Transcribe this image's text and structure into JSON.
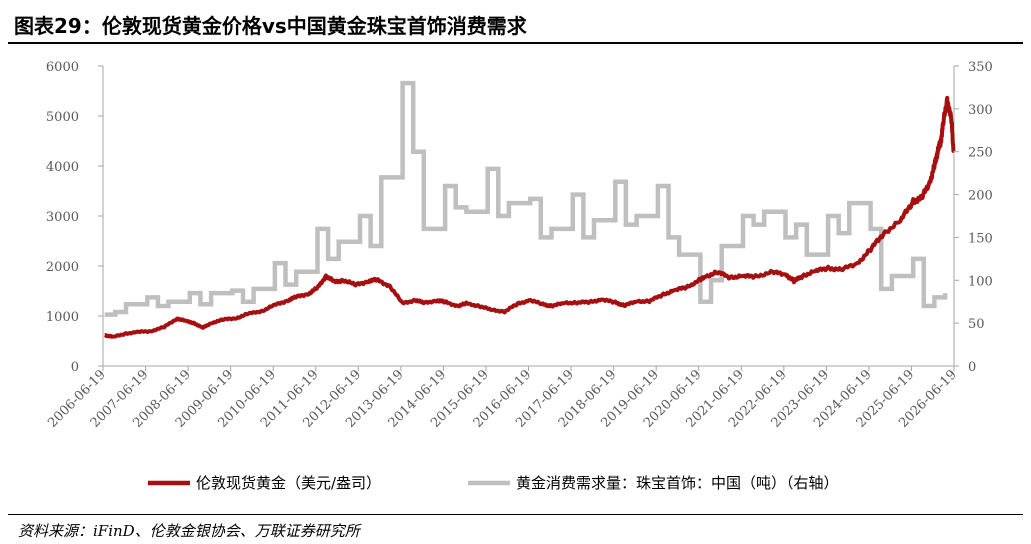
{
  "header": {
    "title": "图表29：伦敦现货黄金价格vs中国黄金珠宝首饰消费需求"
  },
  "footer": {
    "source": "资料来源：iFinD、伦敦金银协会、万联证券研究所"
  },
  "colors": {
    "gold_series": "#A50F0F",
    "demand_series": "#BFBFBF",
    "axis": "#A6A6A6",
    "tick_text": "#595959"
  },
  "chart_data": {
    "type": "line",
    "title": "",
    "xlabel": "",
    "ylabel": "",
    "x_ticks": [
      "2006-06-19",
      "2007-06-19",
      "2008-06-19",
      "2009-06-19",
      "2010-06-19",
      "2011-06-19",
      "2012-06-19",
      "2013-06-19",
      "2014-06-19",
      "2015-06-19",
      "2016-06-19",
      "2017-06-19",
      "2018-06-19",
      "2019-06-19",
      "2020-06-19",
      "2021-06-19",
      "2022-06-19",
      "2023-06-19",
      "2024-06-19",
      "2025-06-19",
      "2026-06-19"
    ],
    "x_range": [
      2006.46,
      2026.46
    ],
    "y_left": {
      "min": 0,
      "max": 6000,
      "ticks": [
        0,
        1000,
        2000,
        3000,
        4000,
        5000,
        6000
      ]
    },
    "y_right": {
      "min": 0,
      "max": 350,
      "ticks": [
        0,
        50,
        100,
        150,
        200,
        250,
        300,
        350
      ]
    },
    "series": [
      {
        "name": "伦敦现货黄金（美元/盎司）",
        "axis": "left",
        "style": "line",
        "x": [
          2006.5,
          2006.7,
          2007.0,
          2007.3,
          2007.6,
          2007.9,
          2008.2,
          2008.4,
          2008.6,
          2008.8,
          2009.0,
          2009.3,
          2009.6,
          2009.9,
          2010.2,
          2010.5,
          2010.8,
          2011.0,
          2011.3,
          2011.5,
          2011.7,
          2011.9,
          2012.1,
          2012.4,
          2012.7,
          2012.9,
          2013.2,
          2013.5,
          2013.8,
          2014.0,
          2014.3,
          2014.5,
          2014.8,
          2015.0,
          2015.3,
          2015.6,
          2015.9,
          2016.2,
          2016.5,
          2016.8,
          2017.0,
          2017.3,
          2017.6,
          2017.9,
          2018.2,
          2018.5,
          2018.7,
          2019.0,
          2019.3,
          2019.6,
          2019.9,
          2020.2,
          2020.5,
          2020.6,
          2020.9,
          2021.2,
          2021.5,
          2021.8,
          2022.2,
          2022.5,
          2022.7,
          2022.9,
          2023.2,
          2023.5,
          2023.8,
          2024.2,
          2024.5,
          2024.8,
          2025.2,
          2025.5,
          2025.7,
          2025.9,
          2026.0,
          2026.05,
          2026.1,
          2026.15,
          2026.2,
          2026.3,
          2026.4,
          2026.45
        ],
        "values": [
          620,
          580,
          650,
          680,
          700,
          780,
          950,
          900,
          860,
          760,
          860,
          930,
          960,
          1050,
          1100,
          1220,
          1310,
          1380,
          1450,
          1560,
          1800,
          1680,
          1720,
          1620,
          1700,
          1720,
          1600,
          1250,
          1320,
          1260,
          1310,
          1280,
          1200,
          1250,
          1200,
          1120,
          1090,
          1240,
          1320,
          1230,
          1200,
          1260,
          1270,
          1280,
          1330,
          1270,
          1210,
          1290,
          1300,
          1420,
          1520,
          1580,
          1730,
          1780,
          1880,
          1770,
          1800,
          1790,
          1880,
          1830,
          1700,
          1800,
          1900,
          1960,
          1920,
          2060,
          2330,
          2650,
          2900,
          3300,
          3350,
          3700,
          4000,
          4200,
          4350,
          4500,
          4800,
          5350,
          4900,
          4300
        ]
      },
      {
        "name": "黄金消费需求量：珠宝首饰：中国（吨）（右轴）",
        "axis": "right",
        "style": "step",
        "x": [
          2006.5,
          2006.75,
          2007.0,
          2007.5,
          2007.75,
          2008.0,
          2008.5,
          2008.75,
          2009.0,
          2009.5,
          2009.75,
          2010.0,
          2010.5,
          2010.75,
          2011.0,
          2011.5,
          2011.75,
          2012.0,
          2012.5,
          2012.75,
          2013.0,
          2013.5,
          2013.75,
          2014.0,
          2014.5,
          2014.75,
          2015.0,
          2015.5,
          2015.75,
          2016.0,
          2016.5,
          2016.75,
          2017.0,
          2017.5,
          2017.75,
          2018.0,
          2018.5,
          2018.75,
          2019.0,
          2019.5,
          2019.75,
          2020.0,
          2020.5,
          2020.75,
          2021.0,
          2021.5,
          2021.75,
          2022.0,
          2022.5,
          2022.75,
          2023.0,
          2023.5,
          2023.75,
          2024.0,
          2024.5,
          2024.75,
          2025.0,
          2025.5,
          2025.75,
          2026.0,
          2026.25
        ],
        "values": [
          60,
          63,
          72,
          80,
          70,
          75,
          85,
          72,
          85,
          88,
          75,
          90,
          120,
          95,
          110,
          160,
          125,
          145,
          175,
          140,
          220,
          330,
          250,
          160,
          210,
          185,
          180,
          230,
          175,
          190,
          195,
          150,
          160,
          200,
          150,
          170,
          215,
          165,
          175,
          210,
          150,
          130,
          75,
          100,
          140,
          175,
          165,
          180,
          150,
          165,
          130,
          175,
          155,
          190,
          160,
          90,
          105,
          125,
          70,
          80,
          85
        ]
      }
    ],
    "legend": {
      "position": "bottom"
    }
  }
}
